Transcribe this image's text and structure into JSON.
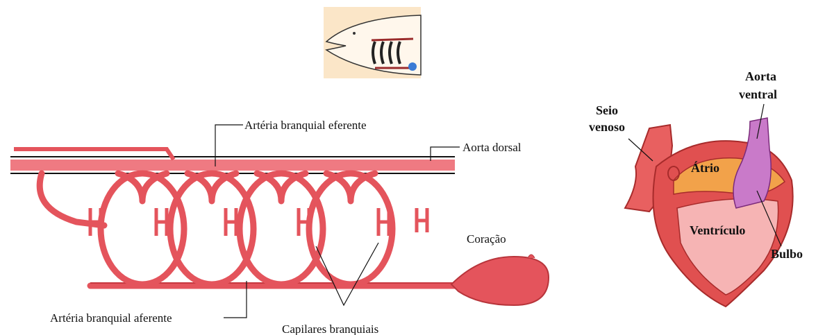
{
  "gill_diagram": {
    "labels": [
      "Artéria branquial eferente",
      "Aorta dorsal",
      "Coração",
      "Artéria branquial aferente",
      "Capilares branquiais"
    ]
  },
  "heart_diagram": {
    "labels": [
      [
        "Seio",
        "venoso"
      ],
      [
        "Aorta",
        "ventral"
      ],
      "Átrio",
      "Ventrículo",
      "Bulbo"
    ]
  }
}
